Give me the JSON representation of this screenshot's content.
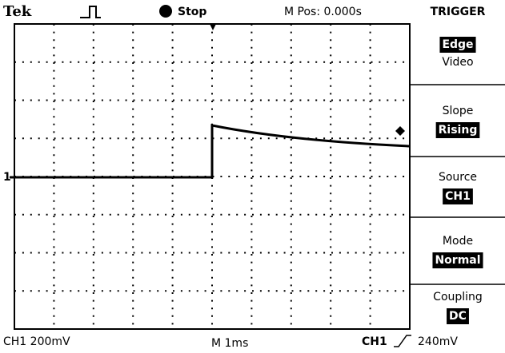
{
  "header": {
    "brand": "Tek",
    "status": "Stop",
    "position": "M Pos: 0.000s",
    "menu_title": "TRIGGER"
  },
  "menu": {
    "type_options": [
      "Edge",
      "Video"
    ],
    "items": [
      {
        "label": "Slope",
        "option": "Rising"
      },
      {
        "label": "Source",
        "option": "CH1"
      },
      {
        "label": "Mode",
        "option": "Normal"
      },
      {
        "label": "Coupling",
        "option": "DC"
      }
    ]
  },
  "screen": {
    "channel_marker": "1"
  },
  "footer": {
    "channel_scale": "CH1 200mV",
    "timebase": "M 1ms",
    "trigger_source": "CH1",
    "trigger_level": "240mV"
  }
}
